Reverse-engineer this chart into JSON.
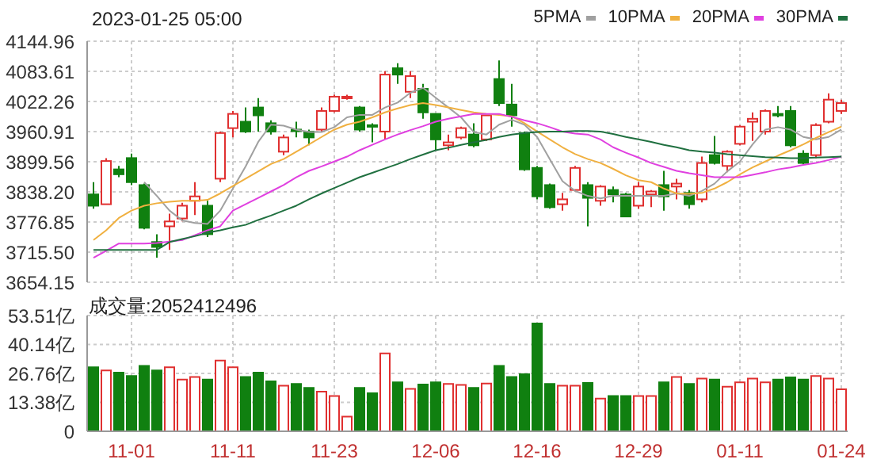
{
  "chart_data": [
    {
      "type": "candlestick",
      "title": "2023-01-25 05:00",
      "categories": [
        null,
        null,
        null,
        null,
        null,
        null,
        null,
        null,
        null,
        null,
        null,
        null,
        null,
        null,
        null,
        null,
        null,
        null,
        null,
        null,
        null,
        null,
        null,
        null,
        null,
        null,
        null,
        null,
        null,
        null,
        null,
        null,
        null,
        null,
        null,
        null,
        null,
        null,
        null,
        null,
        null,
        null,
        null,
        null,
        null,
        null,
        null,
        null,
        null,
        null,
        null,
        null,
        null,
        null,
        null,
        null,
        null,
        null,
        null,
        null
      ],
      "ohlc": [
        [
          3833,
          3858,
          3804,
          3810
        ],
        [
          3813,
          3907,
          3813,
          3901
        ],
        [
          3884,
          3891,
          3868,
          3874
        ],
        [
          3907,
          3916,
          3852,
          3858
        ],
        [
          3852,
          3855,
          3762,
          3765
        ],
        [
          3736,
          3752,
          3704,
          3726
        ],
        [
          3768,
          3794,
          3720,
          3778
        ],
        [
          3784,
          3816,
          3778,
          3810
        ],
        [
          3820,
          3858,
          3791,
          3829
        ],
        [
          3810,
          3820,
          3746,
          3752
        ],
        [
          3865,
          3961,
          3858,
          3958
        ],
        [
          3968,
          4003,
          3949,
          3997
        ],
        [
          3981,
          4010,
          3958,
          3961
        ],
        [
          4010,
          4029,
          3961,
          3994
        ],
        [
          3978,
          3984,
          3955,
          3961
        ],
        [
          3920,
          3955,
          3913,
          3949
        ],
        [
          3965,
          3981,
          3949,
          3962
        ],
        [
          3961,
          3965,
          3933,
          3949
        ],
        [
          3965,
          4010,
          3961,
          4003
        ],
        [
          4003,
          4036,
          4000,
          4032
        ],
        [
          4029,
          4036,
          4026,
          4032
        ],
        [
          4010,
          4013,
          3961,
          3965
        ],
        [
          3974,
          3978,
          3939,
          3971
        ],
        [
          3961,
          4084,
          3945,
          4077
        ],
        [
          4090,
          4100,
          4058,
          4077
        ],
        [
          4042,
          4084,
          4029,
          4074
        ],
        [
          4048,
          4058,
          3987,
          4000
        ],
        [
          3997,
          3997,
          3923,
          3945
        ],
        [
          3933,
          3955,
          3923,
          3939
        ],
        [
          3949,
          3971,
          3945,
          3968
        ],
        [
          3955,
          3978,
          3929,
          3933
        ],
        [
          3945,
          3994,
          3942,
          3994
        ],
        [
          4068,
          4106,
          4013,
          4019
        ],
        [
          4016,
          4058,
          3971,
          3994
        ],
        [
          3958,
          3961,
          3881,
          3884
        ],
        [
          3887,
          3891,
          3823,
          3829
        ],
        [
          3852,
          3855,
          3804,
          3807
        ],
        [
          3813,
          3836,
          3800,
          3823
        ],
        [
          3842,
          3891,
          3839,
          3887
        ],
        [
          3852,
          3858,
          3768,
          3826
        ],
        [
          3820,
          3852,
          3810,
          3849
        ],
        [
          3842,
          3849,
          3817,
          3833
        ],
        [
          3833,
          3836,
          3788,
          3788
        ],
        [
          3810,
          3858,
          3804,
          3849
        ],
        [
          3833,
          3842,
          3807,
          3839
        ],
        [
          3852,
          3881,
          3800,
          3829
        ],
        [
          3849,
          3865,
          3823,
          3855
        ],
        [
          3836,
          3842,
          3804,
          3813
        ],
        [
          3823,
          3910,
          3817,
          3897
        ],
        [
          3913,
          3952,
          3894,
          3897
        ],
        [
          3891,
          3923,
          3878,
          3920
        ],
        [
          3936,
          3974,
          3933,
          3971
        ],
        [
          3981,
          4000,
          3942,
          3987
        ],
        [
          3961,
          4006,
          3955,
          4003
        ],
        [
          3997,
          4013,
          3990,
          3994
        ],
        [
          4003,
          4013,
          3929,
          3933
        ],
        [
          3916,
          3923,
          3894,
          3897
        ],
        [
          3913,
          3978,
          3907,
          3974
        ],
        [
          3981,
          4039,
          3978,
          4026
        ],
        [
          4003,
          4026,
          3997,
          4019
        ]
      ],
      "series": [
        {
          "name": "5PMA",
          "type": "line",
          "color": "#a0a0a0",
          "values": [
            null,
            null,
            null,
            null,
            3858,
            3830,
            3800,
            3780,
            3775,
            3773,
            3800,
            3845,
            3890,
            3940,
            3975,
            3973,
            3965,
            3960,
            3960,
            3970,
            3990,
            3995,
            3995,
            4010,
            4020,
            4040,
            4050,
            4030,
            4010,
            3990,
            3960,
            3955,
            3975,
            3985,
            3975,
            3950,
            3905,
            3860,
            3840,
            3830,
            3825,
            3830,
            3830,
            3830,
            3830,
            3830,
            3835,
            3830,
            3840,
            3855,
            3880,
            3900,
            3935,
            3965,
            3970,
            3965,
            3950,
            3945,
            3950,
            3965
          ]
        },
        {
          "name": "10PMA",
          "type": "line",
          "color": "#f0b040",
          "values": [
            3740,
            3760,
            3785,
            3800,
            3810,
            3815,
            3818,
            3820,
            3820,
            3822,
            3835,
            3850,
            3865,
            3880,
            3895,
            3905,
            3920,
            3935,
            3950,
            3965,
            3975,
            3981,
            3990,
            4000,
            4008,
            4015,
            4019,
            4015,
            4010,
            4005,
            4000,
            3997,
            3995,
            3992,
            3978,
            3961,
            3945,
            3929,
            3915,
            3905,
            3897,
            3885,
            3872,
            3862,
            3858,
            3845,
            3835,
            3834,
            3836,
            3845,
            3858,
            3874,
            3888,
            3900,
            3912,
            3923,
            3935,
            3948,
            3960,
            3971
          ]
        },
        {
          "name": "20PMA",
          "type": "line",
          "color": "#e040e0",
          "values": [
            3704,
            3718,
            3733,
            3733,
            3733,
            3734,
            3737,
            3740,
            3750,
            3760,
            3768,
            3800,
            3813,
            3826,
            3839,
            3852,
            3868,
            3881,
            3890,
            3900,
            3910,
            3923,
            3934,
            3945,
            3955,
            3964,
            3972,
            3981,
            3987,
            3992,
            3997,
            3997,
            3997,
            3991,
            3984,
            3978,
            3970,
            3961,
            3957,
            3955,
            3945,
            3929,
            3918,
            3908,
            3897,
            3889,
            3881,
            3876,
            3872,
            3868,
            3868,
            3868,
            3873,
            3878,
            3884,
            3888,
            3893,
            3897,
            3903,
            3910
          ]
        },
        {
          "name": "30PMA",
          "type": "line",
          "color": "#207040",
          "values": [
            3720,
            3720,
            3720,
            3720,
            3720,
            3720,
            3736,
            3742,
            3748,
            3755,
            3760,
            3766,
            3771,
            3781,
            3790,
            3800,
            3810,
            3823,
            3835,
            3846,
            3857,
            3868,
            3877,
            3886,
            3895,
            3905,
            3914,
            3923,
            3928,
            3934,
            3939,
            3944,
            3950,
            3955,
            3958,
            3960,
            3961,
            3961,
            3962,
            3962,
            3961,
            3956,
            3950,
            3945,
            3940,
            3934,
            3929,
            3923,
            3920,
            3918,
            3915,
            3913,
            3911,
            3909,
            3908,
            3907,
            3907,
            3908,
            3909,
            3910
          ]
        }
      ],
      "ylim": [
        3654.15,
        4144.96
      ],
      "yticks": [
        3654.15,
        {
          "value": 3715.5,
          "label": "3715.50"
        },
        3776.85,
        {
          "value": 3838.2,
          "label": "3838.20"
        },
        3899.56,
        3960.91,
        4022.26,
        4083.61,
        4144.96
      ],
      "grid": true,
      "legend": "top right",
      "tick_labels": "y"
    },
    {
      "type": "bar",
      "title": "成交量:2052412496",
      "categories": [
        null,
        null,
        null,
        "11-01",
        null,
        null,
        null,
        null,
        null,
        null,
        null,
        "11-11",
        null,
        null,
        null,
        null,
        null,
        null,
        null,
        "11-23",
        null,
        null,
        null,
        null,
        null,
        null,
        null,
        "12-06",
        null,
        null,
        null,
        null,
        null,
        null,
        null,
        "12-16",
        null,
        null,
        null,
        null,
        null,
        null,
        null,
        "12-29",
        null,
        null,
        null,
        null,
        null,
        null,
        null,
        "01-11",
        null,
        null,
        null,
        null,
        null,
        null,
        null,
        "01-24"
      ],
      "values": [
        29.6,
        28.1,
        27.1,
        25.6,
        30.2,
        28.1,
        29.6,
        23.9,
        25.1,
        23.9,
        32.7,
        29.6,
        25.1,
        27.1,
        23.1,
        21.1,
        21.9,
        20.1,
        18.3,
        16.3,
        6.8,
        20.1,
        17.6,
        36.0,
        22.6,
        19.6,
        21.6,
        22.6,
        21.9,
        21.4,
        20.1,
        22.1,
        30.2,
        25.1,
        26.4,
        49.8,
        21.9,
        21.1,
        21.1,
        22.4,
        15.1,
        16.3,
        16.3,
        16.3,
        16.3,
        22.6,
        25.1,
        21.9,
        24.4,
        23.9,
        20.6,
        22.6,
        24.4,
        22.6,
        23.9,
        24.9,
        23.9,
        25.6,
        24.4,
        19.4
      ],
      "colors": [
        "#108010",
        "#e03030",
        "#108010",
        "#108010",
        "#108010",
        "#108010",
        "#e03030",
        "#e03030",
        "#e03030",
        "#108010",
        "#e03030",
        "#e03030",
        "#108010",
        "#108010",
        "#108010",
        "#e03030",
        "#108010",
        "#108010",
        "#e03030",
        "#e03030",
        "#e03030",
        "#108010",
        "#108010",
        "#e03030",
        "#108010",
        "#e03030",
        "#108010",
        "#108010",
        "#e03030",
        "#e03030",
        "#108010",
        "#e03030",
        "#108010",
        "#108010",
        "#108010",
        "#108010",
        "#108010",
        "#e03030",
        "#e03030",
        "#108010",
        "#e03030",
        "#108010",
        "#108010",
        "#e03030",
        "#e03030",
        "#108010",
        "#e03030",
        "#108010",
        "#e03030",
        "#108010",
        "#e03030",
        "#e03030",
        "#e03030",
        "#e03030",
        "#108010",
        "#108010",
        "#108010",
        "#e03030",
        "#e03030",
        "#e03030"
      ],
      "ylim": [
        0,
        53.51
      ],
      "yticks": [
        0,
        {
          "value": 13.38,
          "label": "13.38亿"
        },
        {
          "value": 26.76,
          "label": "26.76亿"
        },
        {
          "value": 40.14,
          "label": "40.14亿"
        },
        {
          "value": 53.51,
          "label": "53.51亿"
        }
      ],
      "grid": true
    }
  ]
}
